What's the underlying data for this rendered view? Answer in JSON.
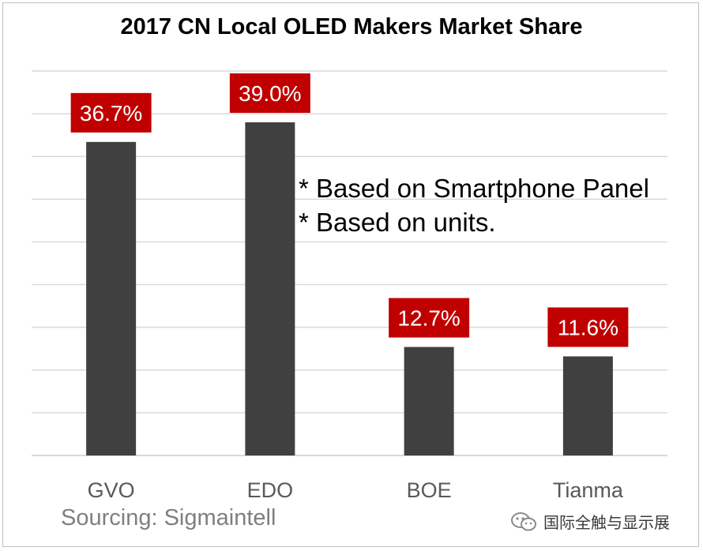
{
  "chart_data": {
    "type": "bar",
    "title": "2017 CN Local OLED Makers Market Share",
    "categories": [
      "GVO",
      "EDO",
      "BOE",
      "Tianma"
    ],
    "values": [
      36.7,
      39.0,
      12.7,
      11.6
    ],
    "data_labels": [
      "36.7%",
      "39.0%",
      "12.7%",
      "11.6%"
    ],
    "ylim": [
      0,
      45
    ],
    "grid": true,
    "xlabel": "",
    "ylabel": "",
    "annotations": [
      "* Based on Smartphone Panel",
      "* Based on units."
    ],
    "source": "Sourcing:  Sigmaintell"
  },
  "watermark": {
    "text": "国际全触与显示展",
    "icon": "wechat-icon"
  },
  "colors": {
    "bar": "#404040",
    "label_bg": "#c00000",
    "label_text": "#ffffff",
    "grid": "#d9d9d9",
    "axis_text": "#595959",
    "source_text": "#7f7f7f"
  }
}
